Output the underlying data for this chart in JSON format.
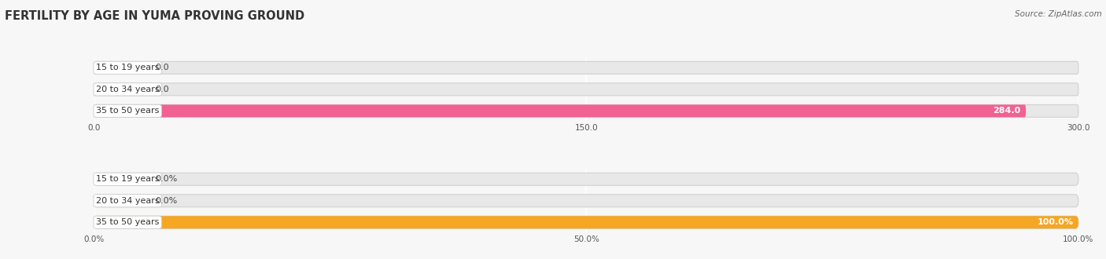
{
  "title": "FERTILITY BY AGE IN YUMA PROVING GROUND",
  "source": "Source: ZipAtlas.com",
  "top_chart": {
    "categories": [
      "15 to 19 years",
      "20 to 34 years",
      "35 to 50 years"
    ],
    "values": [
      0.0,
      0.0,
      284.0
    ],
    "bar_color": "#f06292",
    "bar_color_light": "#f8bbd0",
    "label_values": [
      "0.0",
      "0.0",
      "284.0"
    ],
    "xlim": [
      0,
      300
    ],
    "xticks": [
      0.0,
      150.0,
      300.0
    ],
    "xtick_labels": [
      "0.0",
      "150.0",
      "300.0"
    ]
  },
  "bottom_chart": {
    "categories": [
      "15 to 19 years",
      "20 to 34 years",
      "35 to 50 years"
    ],
    "values": [
      0.0,
      0.0,
      100.0
    ],
    "bar_color": "#f5a623",
    "bar_color_light": "#fcd5a0",
    "label_values": [
      "0.0%",
      "0.0%",
      "100.0%"
    ],
    "xlim": [
      0,
      100
    ],
    "xticks": [
      0.0,
      50.0,
      100.0
    ],
    "xtick_labels": [
      "0.0%",
      "50.0%",
      "100.0%"
    ]
  },
  "background_color": "#f7f7f7",
  "bar_bg_color": "#e8e8e8",
  "title_fontsize": 10.5,
  "label_fontsize": 8,
  "tick_fontsize": 7.5,
  "source_fontsize": 7.5
}
